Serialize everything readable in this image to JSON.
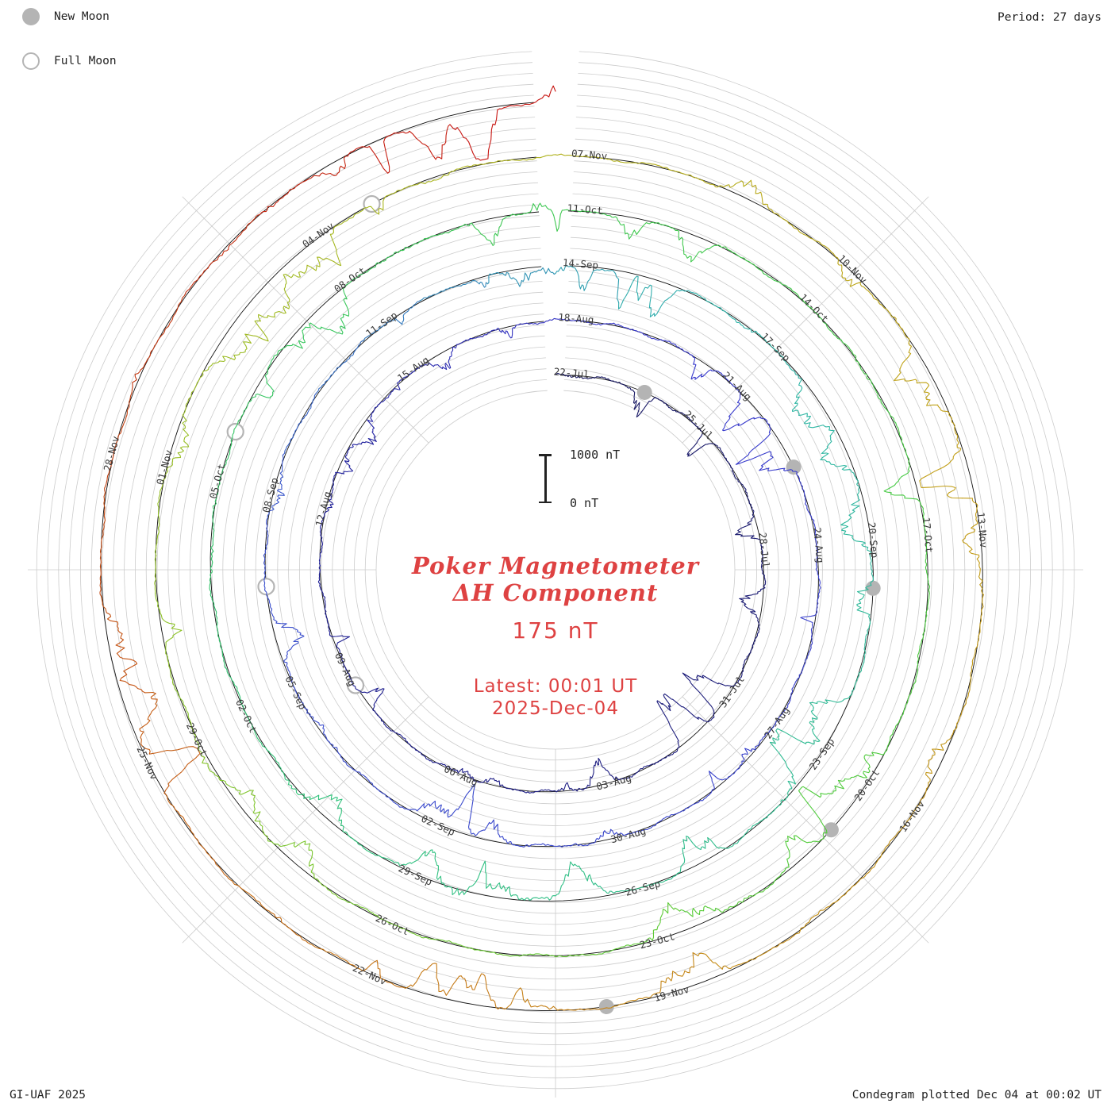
{
  "header": {
    "period_label": "Period: 27 days"
  },
  "legend": {
    "new_moon_label": "New Moon",
    "full_moon_label": "Full Moon"
  },
  "footer": {
    "left": "GI-UAF 2025",
    "right": "Condegram plotted Dec 04 at 00:02 UT"
  },
  "center": {
    "title_line1": "Poker Magnetometer",
    "title_line2": "ΔH Component",
    "current_value": "175 nT",
    "latest_line1": "Latest: 00:01 UT",
    "latest_line2": "2025-Dec-04",
    "scale_top_label": "1000 nT",
    "scale_zero_label": "0 nT"
  },
  "colors": {
    "accent_red": "#de4242",
    "grid": "#cccccc",
    "baseline": "#111111",
    "label_text": "#3a3a3a",
    "moon_gray": "#b4b4b4"
  },
  "chart_data": {
    "type": "line",
    "subtype": "condegram-polar-spiral",
    "title": "Poker Magnetometer ΔH Component",
    "station": "Poker",
    "component": "ΔH",
    "period_days": 27,
    "revolutions": 5,
    "start_label": "22-Jul",
    "end_label": "04-Dec",
    "latest_label": "2025-Dec-04 00:01 UT",
    "latest_value_nT": 175,
    "scale_reference_nT": [
      0,
      1000
    ],
    "x_encoding": "time, clockwise from top, 27 days per revolution",
    "r_encoding": "ΔH deviation in nT from ring baseline (scale bar = 1000 nT)",
    "resolution_note": "continuous magnetometer trace; individual samples not resolvable at this scale",
    "rings": [
      {
        "index": 1,
        "start": "22-Jul",
        "end": "18-Aug",
        "color_range": [
          "#181860",
          "#3030bb"
        ]
      },
      {
        "index": 2,
        "start": "18-Aug",
        "end": "14-Sep",
        "color_range": [
          "#3838cc",
          "#3a55c8"
        ]
      },
      {
        "index": 3,
        "start": "14-Sep",
        "end": "11-Oct",
        "color_range": [
          "#2fb3ab",
          "#3cc763"
        ]
      },
      {
        "index": 4,
        "start": "11-Oct",
        "end": "07-Nov",
        "color_range": [
          "#40c83e",
          "#a8b720"
        ]
      },
      {
        "index": 5,
        "start": "07-Nov",
        "end": "04-Dec",
        "color_range": [
          "#bfa519",
          "#c81111"
        ]
      }
    ],
    "date_labels": [
      {
        "day": 0,
        "label": "22-Jul"
      },
      {
        "day": 3,
        "label": "25-Jul"
      },
      {
        "day": 6,
        "label": "28-Jul"
      },
      {
        "day": 9,
        "label": "31-Jul"
      },
      {
        "day": 12,
        "label": "03-Aug"
      },
      {
        "day": 15,
        "label": "06-Aug"
      },
      {
        "day": 18,
        "label": "09-Aug"
      },
      {
        "day": 21,
        "label": "12-Aug"
      },
      {
        "day": 24,
        "label": "15-Aug"
      },
      {
        "day": 27,
        "label": "18-Aug"
      },
      {
        "day": 30,
        "label": "21-Aug"
      },
      {
        "day": 33,
        "label": "24-Aug"
      },
      {
        "day": 36,
        "label": "27-Aug"
      },
      {
        "day": 39,
        "label": "30-Aug"
      },
      {
        "day": 42,
        "label": "02-Sep"
      },
      {
        "day": 45,
        "label": "05-Sep"
      },
      {
        "day": 48,
        "label": "08-Sep"
      },
      {
        "day": 51,
        "label": "11-Sep"
      },
      {
        "day": 54,
        "label": "14-Sep"
      },
      {
        "day": 57,
        "label": "17-Sep"
      },
      {
        "day": 60,
        "label": "20-Sep"
      },
      {
        "day": 63,
        "label": "23-Sep"
      },
      {
        "day": 66,
        "label": "26-Sep"
      },
      {
        "day": 69,
        "label": "29-Sep"
      },
      {
        "day": 72,
        "label": "02-Oct"
      },
      {
        "day": 75,
        "label": "05-Oct"
      },
      {
        "day": 78,
        "label": "08-Oct"
      },
      {
        "day": 81,
        "label": "11-Oct"
      },
      {
        "day": 84,
        "label": "14-Oct"
      },
      {
        "day": 87,
        "label": "17-Oct"
      },
      {
        "day": 90,
        "label": "20-Oct"
      },
      {
        "day": 93,
        "label": "23-Oct"
      },
      {
        "day": 96,
        "label": "26-Oct"
      },
      {
        "day": 99,
        "label": "29-Oct"
      },
      {
        "day": 102,
        "label": "01-Nov"
      },
      {
        "day": 105,
        "label": "04-Nov"
      },
      {
        "day": 108,
        "label": "07-Nov"
      },
      {
        "day": 111,
        "label": "10-Nov"
      },
      {
        "day": 114,
        "label": "13-Nov"
      },
      {
        "day": 117,
        "label": "16-Nov"
      },
      {
        "day": 120,
        "label": "19-Nov"
      },
      {
        "day": 123,
        "label": "22-Nov"
      },
      {
        "day": 126,
        "label": "25-Nov"
      },
      {
        "day": 129,
        "label": "28-Nov"
      }
    ],
    "moon_events": [
      {
        "type": "new",
        "date": "24-Jul",
        "day": 2
      },
      {
        "type": "new",
        "date": "23-Aug",
        "day": 32
      },
      {
        "type": "new",
        "date": "21-Sep",
        "day": 61
      },
      {
        "type": "new",
        "date": "21-Oct",
        "day": 91
      },
      {
        "type": "new",
        "date": "20-Nov",
        "day": 121
      },
      {
        "type": "full",
        "date": "09-Aug",
        "day": 18
      },
      {
        "type": "full",
        "date": "07-Sep",
        "day": 47
      },
      {
        "type": "full",
        "date": "06-Oct",
        "day": 76
      },
      {
        "type": "full",
        "date": "05-Nov",
        "day": 106
      }
    ],
    "color_stops": [
      [
        0,
        "#181860"
      ],
      [
        22,
        "#20209a"
      ],
      [
        28,
        "#3838cc"
      ],
      [
        48,
        "#3a50cc"
      ],
      [
        56,
        "#2fb3ab"
      ],
      [
        70,
        "#30c27e"
      ],
      [
        80,
        "#3cc854"
      ],
      [
        92,
        "#52cb38"
      ],
      [
        100,
        "#8cc32a"
      ],
      [
        107,
        "#adb51f"
      ],
      [
        113,
        "#c2a118"
      ],
      [
        120,
        "#c58a18"
      ],
      [
        125,
        "#c66a15"
      ],
      [
        130,
        "#c33d12"
      ],
      [
        135,
        "#c81111"
      ]
    ],
    "layout": {
      "rings_visible": 5,
      "sector_spokes_deg": 45,
      "gap_at_top": true,
      "grid": "concentric gray circles with 45-degree spokes",
      "legend_position": "top-left",
      "scale_bar_position": "center"
    }
  }
}
